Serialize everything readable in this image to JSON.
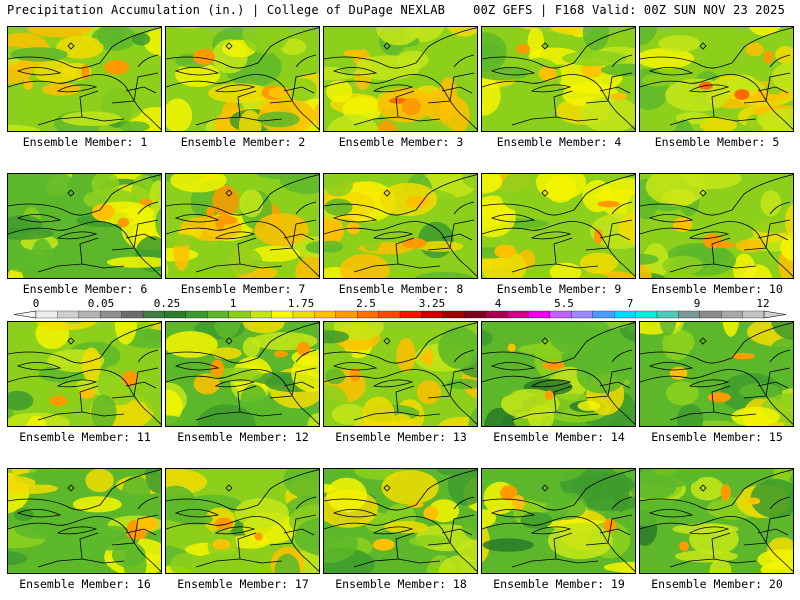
{
  "header": {
    "title": "Precipitation Accumulation (in.) | College of DuPage NEXLAB",
    "run_info": "00Z GEFS | F168 Valid: 00Z SUN NOV 23 2025"
  },
  "panels": [
    {
      "label": "Ensemble Member: 1",
      "bias": 0.55
    },
    {
      "label": "Ensemble Member: 2",
      "bias": 0.5
    },
    {
      "label": "Ensemble Member: 3",
      "bias": 0.72
    },
    {
      "label": "Ensemble Member: 4",
      "bias": 0.6
    },
    {
      "label": "Ensemble Member: 5",
      "bias": 0.62
    },
    {
      "label": "Ensemble Member: 6",
      "bias": 0.3
    },
    {
      "label": "Ensemble Member: 7",
      "bias": 0.66
    },
    {
      "label": "Ensemble Member: 8",
      "bias": 0.5
    },
    {
      "label": "Ensemble Member: 9",
      "bias": 0.6
    },
    {
      "label": "Ensemble Member: 10",
      "bias": 0.55
    },
    {
      "label": "Ensemble Member: 11",
      "bias": 0.55
    },
    {
      "label": "Ensemble Member: 12",
      "bias": 0.45
    },
    {
      "label": "Ensemble Member: 13",
      "bias": 0.55
    },
    {
      "label": "Ensemble Member: 14",
      "bias": 0.3
    },
    {
      "label": "Ensemble Member: 15",
      "bias": 0.42
    },
    {
      "label": "Ensemble Member: 16",
      "bias": 0.4
    },
    {
      "label": "Ensemble Member: 17",
      "bias": 0.5
    },
    {
      "label": "Ensemble Member: 18",
      "bias": 0.38
    },
    {
      "label": "Ensemble Member: 19",
      "bias": 0.35
    },
    {
      "label": "Ensemble Member: 20",
      "bias": 0.3
    }
  ],
  "legend": {
    "labels": [
      "0",
      "0.05",
      "0.25",
      "1",
      "1.75",
      "2.5",
      "3.25",
      "4",
      "5.5",
      "7",
      "9",
      "12"
    ],
    "colors": [
      "#ececec",
      "#cfcfcf",
      "#b2b2b2",
      "#8f8f8f",
      "#6c6c6c",
      "#447a44",
      "#2e7d2e",
      "#3c9a2c",
      "#5cb82a",
      "#8cd01c",
      "#c4e618",
      "#fafa00",
      "#f2dc00",
      "#ffc000",
      "#ff9a00",
      "#ff7000",
      "#ff4a00",
      "#f01800",
      "#cc0000",
      "#a00000",
      "#7e0020",
      "#a8004c",
      "#d0008c",
      "#ee00ee",
      "#c060ff",
      "#a088ff",
      "#4c9cff",
      "#00d8ff",
      "#00f0e0",
      "#50c8b8",
      "#789898",
      "#8c8c8c",
      "#a8a8a8",
      "#c4c4c4"
    ]
  }
}
